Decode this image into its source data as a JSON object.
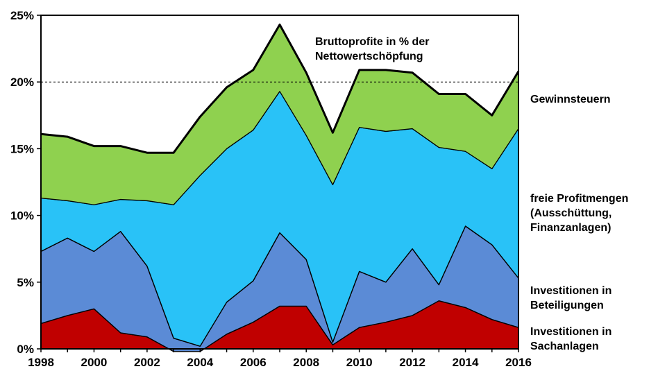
{
  "chart_data": {
    "type": "area",
    "stacked": true,
    "title_lines": [
      "Bruttoprofite in % der",
      "Nettowertschöpfung"
    ],
    "x": [
      1998,
      1999,
      2000,
      2001,
      2002,
      2003,
      2004,
      2005,
      2006,
      2007,
      2008,
      2009,
      2010,
      2011,
      2012,
      2013,
      2014,
      2015,
      2016
    ],
    "xlim": [
      1998,
      2016
    ],
    "x_tick_labels": [
      "1998",
      "2000",
      "2002",
      "2004",
      "2006",
      "2008",
      "2010",
      "2012",
      "2014",
      "2016"
    ],
    "ylim": [
      0,
      25
    ],
    "y_tick_labels": [
      "0%",
      "5%",
      "10%",
      "15%",
      "20%",
      "25%"
    ],
    "reference_line": {
      "y": 20,
      "style": "dashed"
    },
    "series": [
      {
        "name_lines": [
          "Investitionen in",
          "Sachanlagen"
        ],
        "color": "#c00000",
        "values": [
          1.9,
          2.5,
          3.0,
          1.2,
          0.9,
          -0.2,
          -0.2,
          1.1,
          2.0,
          3.2,
          3.2,
          0.3,
          1.6,
          2.0,
          2.5,
          3.6,
          3.1,
          2.2,
          1.6
        ]
      },
      {
        "name_lines": [
          "Investitionen in",
          "Beteiligungen"
        ],
        "color": "#5b8bd6",
        "values": [
          5.4,
          5.8,
          4.3,
          7.6,
          5.3,
          1.0,
          0.4,
          2.4,
          3.1,
          5.5,
          3.5,
          0.2,
          4.2,
          3.0,
          5.0,
          1.2,
          6.1,
          5.6,
          3.7
        ]
      },
      {
        "name_lines": [
          "freie Profitmengen",
          "(Ausschüttung,",
          "Finanzanlagen)"
        ],
        "color": "#29c2f7",
        "values": [
          4.0,
          2.8,
          3.5,
          2.4,
          4.9,
          10.0,
          12.8,
          11.5,
          11.3,
          10.6,
          9.3,
          11.8,
          10.8,
          11.3,
          9.0,
          10.3,
          5.6,
          5.7,
          11.2
        ]
      },
      {
        "name_lines": [
          "Gewinnsteuern"
        ],
        "color": "#8fd14f",
        "values": [
          4.8,
          4.8,
          4.4,
          4.0,
          3.6,
          3.9,
          4.4,
          4.6,
          4.5,
          5.0,
          4.7,
          3.9,
          4.3,
          4.6,
          4.2,
          4.0,
          4.3,
          4.0,
          4.3
        ]
      }
    ],
    "grid": false,
    "legend": "right"
  }
}
